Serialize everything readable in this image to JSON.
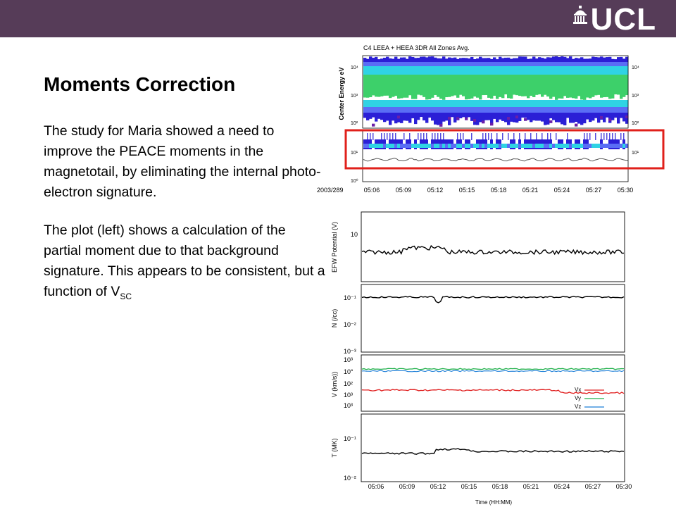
{
  "header": {
    "logo_text": "UCL",
    "brand_color": "#563c58"
  },
  "slide": {
    "title": "Moments Correction",
    "paragraph_1": "The study for Maria showed a need to improve the PEACE moments in the magnetotail, by eliminating the internal photo-electron signature.",
    "paragraph_2_prefix": "The plot (left) shows a calculation of the partial moment due to that background signature. This appears to be consistent, but a function of V",
    "paragraph_2_subscript": "SC"
  },
  "spectrogram": {
    "title": "C4 LEEA + HEEA 3DR All Zones Avg.",
    "ylabel": "Center Energy eV",
    "upper_ticks": [
      "10⁴",
      "10³",
      "10²"
    ],
    "lower_ticks": [
      "10¹",
      "10⁰"
    ],
    "date": "2003/289",
    "x_ticks": [
      "05:06",
      "05:09",
      "05:12",
      "05:15",
      "05:18",
      "05:21",
      "05:24",
      "05:27",
      "05:30"
    ],
    "highlight_color": "#e0201b"
  },
  "moments": {
    "x_ticks": [
      "05:06",
      "05:09",
      "05:12",
      "05:15",
      "05:18",
      "05:21",
      "05:24",
      "05:27",
      "05:30"
    ],
    "xlabel": "Time (HH:MM)",
    "panel_efw": {
      "ylabel": "EFW Potential (V)",
      "tick": "10"
    },
    "panel_n": {
      "ylabel": "N (/cc)",
      "ticks": [
        "10⁻¹",
        "10⁻²",
        "10⁻³"
      ]
    },
    "panel_v": {
      "ylabel": "V (km/s))",
      "ticks": [
        "10³",
        "10°",
        "10²",
        "10³",
        "10³"
      ],
      "legend": [
        {
          "name": "Vx",
          "color": "#e02020"
        },
        {
          "name": "Vy",
          "color": "#22b14c"
        },
        {
          "name": "Vz",
          "color": "#1e7fd8"
        }
      ]
    },
    "panel_t": {
      "ylabel": "T (MK)",
      "ticks": [
        "10⁻¹",
        "10⁻²"
      ]
    }
  }
}
